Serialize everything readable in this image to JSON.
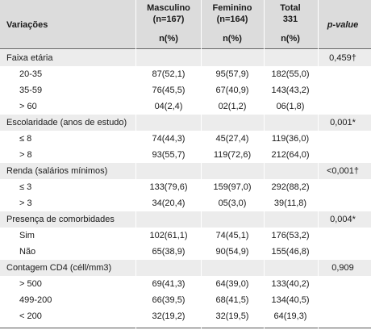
{
  "header": {
    "variacoes": "Variações",
    "masc_title": "Masculino",
    "masc_n": "(n=167)",
    "masc_pct": "n(%)",
    "fem_title": "Feminino",
    "fem_n": "(n=164)",
    "fem_pct": "n(%)",
    "total_title": "Total",
    "total_n": "331",
    "total_pct": "n(%)",
    "pvalue": "p-value"
  },
  "rows": [
    {
      "label": "Faixa etária",
      "masc": "",
      "fem": "",
      "total": "",
      "p": "0,459†"
    },
    {
      "label": "20-35",
      "masc": "87(52,1)",
      "fem": "95(57,9)",
      "total": "182(55,0)",
      "p": ""
    },
    {
      "label": "35-59",
      "masc": "76(45,5)",
      "fem": "67(40,9)",
      "total": "143(43,2)",
      "p": ""
    },
    {
      "label": "> 60",
      "masc": "04(2,4)",
      "fem": "02(1,2)",
      "total": "06(1,8)",
      "p": ""
    },
    {
      "label": "Escolaridade (anos de estudo)",
      "masc": "",
      "fem": "",
      "total": "",
      "p": "0,001*"
    },
    {
      "label": "≤ 8",
      "masc": "74(44,3)",
      "fem": "45(27,4)",
      "total": "119(36,0)",
      "p": ""
    },
    {
      "label": "> 8",
      "masc": "93(55,7)",
      "fem": "119(72,6)",
      "total": "212(64,0)",
      "p": ""
    },
    {
      "label": "Renda (salários mínimos)",
      "masc": "",
      "fem": "",
      "total": "",
      "p": "<0,001†"
    },
    {
      "label": "≤ 3",
      "masc": "133(79,6)",
      "fem": "159(97,0)",
      "total": "292(88,2)",
      "p": ""
    },
    {
      "label": "> 3",
      "masc": "34(20,4)",
      "fem": "05(3,0)",
      "total": "39(11,8)",
      "p": ""
    },
    {
      "label": "Presença de comorbidades",
      "masc": "",
      "fem": "",
      "total": "",
      "p": "0,004*"
    },
    {
      "label": "Sim",
      "masc": "102(61,1)",
      "fem": "74(45,1)",
      "total": "176(53,2)",
      "p": ""
    },
    {
      "label": "Não",
      "masc": "65(38,9)",
      "fem": "90(54,9)",
      "total": "155(46,8)",
      "p": ""
    },
    {
      "label": "Contagem CD4 (céll/mm3)",
      "masc": "",
      "fem": "",
      "total": "",
      "p": "0,909"
    },
    {
      "label": "> 500",
      "masc": "69(41,3)",
      "fem": "64(39,0)",
      "total": "133(40,2)",
      "p": ""
    },
    {
      "label": "499-200",
      "masc": "66(39,5)",
      "fem": "68(41,5)",
      "total": "134(40,5)",
      "p": ""
    },
    {
      "label": "< 200",
      "masc": "32(19,2)",
      "fem": "32(19,5)",
      "total": "64(19,3)",
      "p": ""
    }
  ]
}
